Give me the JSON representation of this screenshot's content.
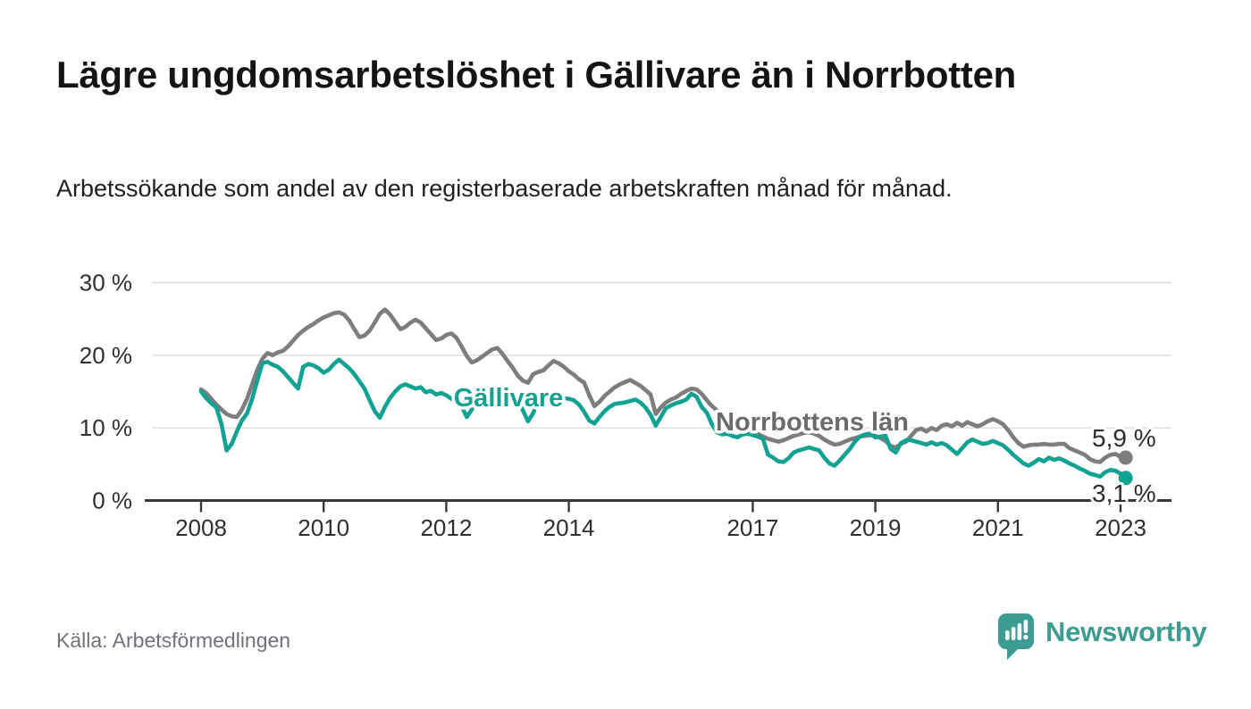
{
  "header": {
    "title": "Lägre ungdomsarbetslöshet i Gällivare än i Norrbotten",
    "subtitle": "Arbetssökande som andel av den registerbaserade arbetskraften månad för månad."
  },
  "footer": {
    "source": "Källa: Arbetsförmedlingen",
    "brand": "Newsworthy"
  },
  "colors": {
    "background": "#ffffff",
    "axis": "#383838",
    "gridline": "#dcdcdc",
    "tick_text": "#2e2e2e",
    "end_label_text": "#2d2d2d",
    "brand_teal": "#3d9c92"
  },
  "chart_data": {
    "type": "line",
    "unit": "%",
    "grid": true,
    "legend_position": "inline-labels",
    "x_axis": {
      "start": {
        "year": 2008,
        "month": 1
      },
      "end": {
        "year": 2023,
        "month": 2
      },
      "tick_years": [
        2008,
        2010,
        2012,
        2014,
        2017,
        2019,
        2021,
        2023
      ]
    },
    "y_axis": {
      "ylim": [
        0,
        32
      ],
      "ticks": [
        {
          "value": 0,
          "label": "0 %"
        },
        {
          "value": 10,
          "label": "10 %"
        },
        {
          "value": 20,
          "label": "20 %"
        },
        {
          "value": 30,
          "label": "30 %"
        }
      ]
    },
    "series": [
      {
        "name": "Norrbottens län",
        "color": "#7d7d7d",
        "label_color": "#6b6b6b",
        "end_label": "5,9 %",
        "end_value": 5.9,
        "values": [
          15.3,
          14.8,
          14.0,
          13.2,
          12.5,
          11.9,
          11.6,
          11.5,
          12.5,
          14.0,
          16.0,
          18.0,
          19.5,
          20.3,
          20.0,
          20.4,
          20.6,
          21.2,
          22.0,
          22.8,
          23.4,
          23.9,
          24.3,
          24.8,
          25.2,
          25.5,
          25.8,
          25.9,
          25.6,
          24.8,
          23.6,
          22.5,
          22.7,
          23.4,
          24.5,
          25.7,
          26.3,
          25.6,
          24.6,
          23.6,
          23.9,
          24.5,
          24.9,
          24.5,
          23.7,
          22.9,
          22.1,
          22.3,
          22.8,
          23.0,
          22.4,
          21.2,
          19.9,
          19.0,
          19.3,
          19.8,
          20.3,
          20.8,
          21.0,
          20.2,
          19.2,
          18.3,
          17.2,
          16.5,
          16.2,
          17.4,
          17.7,
          17.9,
          18.6,
          19.2,
          18.9,
          18.4,
          17.8,
          17.3,
          16.7,
          16.2,
          14.5,
          13.0,
          13.6,
          14.4,
          15.0,
          15.6,
          16.0,
          16.3,
          16.6,
          16.2,
          15.8,
          15.2,
          14.6,
          11.9,
          12.8,
          13.5,
          13.9,
          14.2,
          14.7,
          15.1,
          15.4,
          15.3,
          14.7,
          13.8,
          13.0,
          12.4,
          11.8,
          11.3,
          10.8,
          10.4,
          10.0,
          9.7,
          9.5,
          9.2,
          8.8,
          8.5,
          8.3,
          8.1,
          8.3,
          8.6,
          8.9,
          9.1,
          9.3,
          9.4,
          9.2,
          8.9,
          8.4,
          8.0,
          7.7,
          7.8,
          8.1,
          8.4,
          8.6,
          8.8,
          8.9,
          9.0,
          8.9,
          8.6,
          8.2,
          7.5,
          7.3,
          7.8,
          8.1,
          8.9,
          9.7,
          9.9,
          9.5,
          10.0,
          9.7,
          10.3,
          10.5,
          10.2,
          10.7,
          10.3,
          10.8,
          10.5,
          10.2,
          10.5,
          10.9,
          11.2,
          10.9,
          10.5,
          9.7,
          8.7,
          7.9,
          7.4,
          7.6,
          7.7,
          7.7,
          7.8,
          7.7,
          7.7,
          7.8,
          7.8,
          7.2,
          6.9,
          6.6,
          6.3,
          5.7,
          5.4,
          5.3,
          5.9,
          6.3,
          6.4,
          6.0,
          5.9
        ]
      },
      {
        "name": "Gällivare",
        "color": "#12a292",
        "label_color": "#12a292",
        "end_label": "3,1 %",
        "end_value": 3.1,
        "values": [
          15.0,
          14.1,
          13.4,
          12.8,
          10.5,
          6.9,
          7.8,
          9.5,
          11.0,
          12.0,
          14.0,
          16.5,
          18.9,
          19.1,
          18.7,
          18.4,
          17.8,
          17.0,
          16.2,
          15.4,
          18.4,
          18.8,
          18.6,
          18.2,
          17.6,
          18.0,
          18.8,
          19.4,
          18.8,
          18.2,
          17.4,
          16.4,
          15.4,
          13.8,
          12.3,
          11.4,
          12.9,
          14.1,
          15.0,
          15.7,
          16.0,
          15.7,
          15.4,
          15.6,
          14.9,
          15.1,
          14.6,
          14.8,
          14.5,
          14.0,
          14.4,
          13.0,
          11.5,
          12.5,
          14.4,
          15.2,
          15.5,
          15.6,
          15.4,
          15.2,
          15.0,
          14.6,
          13.8,
          12.4,
          10.9,
          12.0,
          13.8,
          14.2,
          14.1,
          14.3,
          14.2,
          14.1,
          14.0,
          13.8,
          13.2,
          12.2,
          11.0,
          10.6,
          11.5,
          12.3,
          12.9,
          13.3,
          13.4,
          13.5,
          13.7,
          13.9,
          13.5,
          12.8,
          11.8,
          10.3,
          11.5,
          12.7,
          13.1,
          13.4,
          13.6,
          13.9,
          14.7,
          14.3,
          12.9,
          12.1,
          10.5,
          9.4,
          9.1,
          9.2,
          8.9,
          8.7,
          9.1,
          9.2,
          9.0,
          8.8,
          8.5,
          6.3,
          5.9,
          5.4,
          5.3,
          5.8,
          6.6,
          6.9,
          7.1,
          7.3,
          7.1,
          6.9,
          5.9,
          5.1,
          4.8,
          5.5,
          6.3,
          7.1,
          8.1,
          8.8,
          9.1,
          9.2,
          8.7,
          8.8,
          8.9,
          7.1,
          6.6,
          7.9,
          8.3,
          8.3,
          8.1,
          7.9,
          7.7,
          8.0,
          7.7,
          7.9,
          7.6,
          7.0,
          6.4,
          7.2,
          8.0,
          8.4,
          8.1,
          7.8,
          7.9,
          8.2,
          7.9,
          7.6,
          7.0,
          6.3,
          5.7,
          5.1,
          4.8,
          5.2,
          5.7,
          5.4,
          5.9,
          5.6,
          5.8,
          5.5,
          5.1,
          4.8,
          4.4,
          4.1,
          3.7,
          3.5,
          3.3,
          3.9,
          4.2,
          4.1,
          3.7,
          3.1
        ]
      }
    ]
  }
}
